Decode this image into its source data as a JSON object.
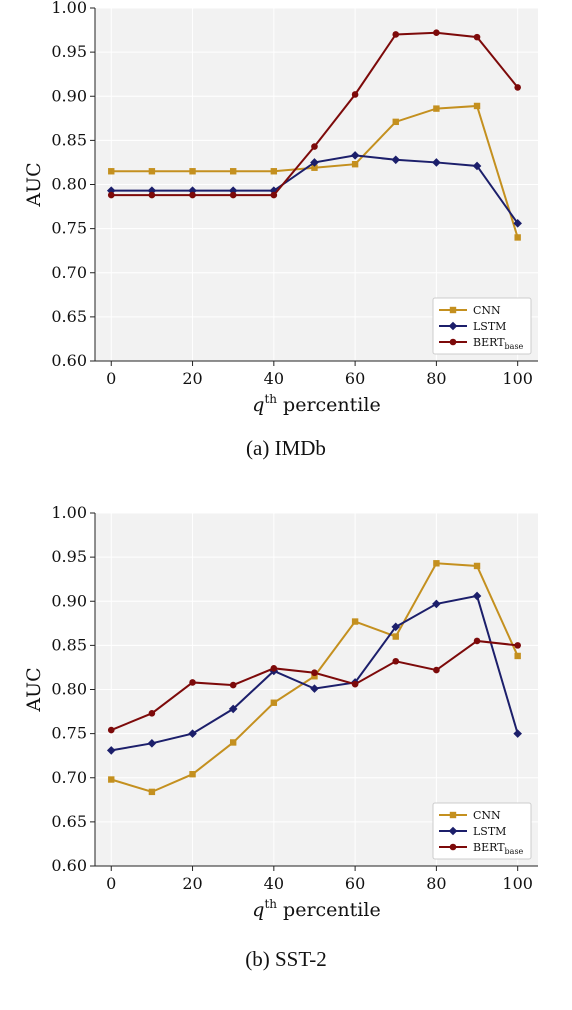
{
  "colors": {
    "cnn": "#c4901f",
    "lstm": "#1c1f6b",
    "bert": "#7d0a0a",
    "plot_bg": "#f2f2f2",
    "grid": "#ffffff"
  },
  "figures": [
    {
      "caption": "(a) IMDb",
      "chart_data": {
        "type": "line",
        "ylabel": "AUC",
        "xlabel_prefix": "q",
        "xlabel_sup": "th",
        "xlabel_suffix": " percentile",
        "x": [
          0,
          10,
          20,
          30,
          40,
          50,
          60,
          70,
          80,
          90,
          100
        ],
        "xlim": [
          -4,
          105
        ],
        "ylim": [
          0.6,
          1.0
        ],
        "xticks": [
          0,
          20,
          40,
          60,
          80,
          100
        ],
        "yticks": [
          "0.60",
          "0.65",
          "0.70",
          "0.75",
          "0.80",
          "0.85",
          "0.90",
          "0.95",
          "1.00"
        ],
        "grid": true,
        "legend_position": "lower-right",
        "series": [
          {
            "name": "CNN",
            "key": "cnn",
            "marker": "square",
            "values": [
              0.815,
              0.815,
              0.815,
              0.815,
              0.815,
              0.819,
              0.823,
              0.871,
              0.886,
              0.889,
              0.74
            ]
          },
          {
            "name": "LSTM",
            "key": "lstm",
            "marker": "diamond",
            "values": [
              0.793,
              0.793,
              0.793,
              0.793,
              0.793,
              0.825,
              0.833,
              0.828,
              0.825,
              0.821,
              0.756
            ]
          },
          {
            "name": "BERT",
            "name_sub": "base",
            "key": "bert",
            "marker": "circle",
            "values": [
              0.788,
              0.788,
              0.788,
              0.788,
              0.788,
              0.843,
              0.902,
              0.97,
              0.972,
              0.967,
              0.91
            ]
          }
        ]
      }
    },
    {
      "caption": "(b) SST-2",
      "chart_data": {
        "type": "line",
        "ylabel": "AUC",
        "xlabel_prefix": "q",
        "xlabel_sup": "th",
        "xlabel_suffix": " percentile",
        "x": [
          0,
          10,
          20,
          30,
          40,
          50,
          60,
          70,
          80,
          90,
          100
        ],
        "xlim": [
          -4,
          105
        ],
        "ylim": [
          0.6,
          1.0
        ],
        "xticks": [
          0,
          20,
          40,
          60,
          80,
          100
        ],
        "yticks": [
          "0.60",
          "0.65",
          "0.70",
          "0.75",
          "0.80",
          "0.85",
          "0.90",
          "0.95",
          "1.00"
        ],
        "grid": true,
        "legend_position": "lower-right",
        "series": [
          {
            "name": "CNN",
            "key": "cnn",
            "marker": "square",
            "values": [
              0.698,
              0.684,
              0.704,
              0.74,
              0.785,
              0.815,
              0.877,
              0.86,
              0.943,
              0.94,
              0.838
            ]
          },
          {
            "name": "LSTM",
            "key": "lstm",
            "marker": "diamond",
            "values": [
              0.731,
              0.739,
              0.75,
              0.778,
              0.821,
              0.801,
              0.808,
              0.871,
              0.897,
              0.906,
              0.75
            ]
          },
          {
            "name": "BERT",
            "name_sub": "base",
            "key": "bert",
            "marker": "circle",
            "values": [
              0.754,
              0.773,
              0.808,
              0.805,
              0.824,
              0.819,
              0.806,
              0.832,
              0.822,
              0.855,
              0.85
            ]
          }
        ]
      }
    }
  ]
}
